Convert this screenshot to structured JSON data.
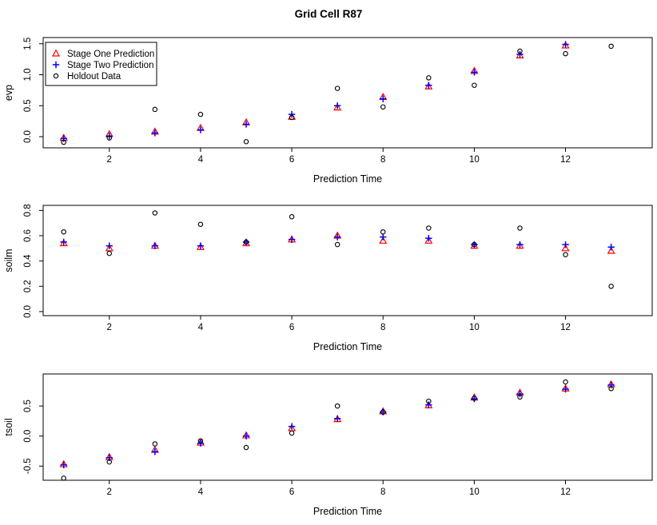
{
  "page": {
    "title": "Grid Cell R87",
    "background": "#ffffff"
  },
  "colors": {
    "stage_one": "#ff0000",
    "stage_two": "#0000ff",
    "holdout": "#000000",
    "axis": "#000000"
  },
  "legend": {
    "position": "top-left",
    "items": [
      {
        "label": "Stage One Prediction",
        "marker": "triangle-open-icon",
        "color": "#ff0000"
      },
      {
        "label": "Stage Two Prediction",
        "marker": "plus-icon",
        "color": "#0000ff"
      },
      {
        "label": "Holdout Data",
        "marker": "circle-open-icon",
        "color": "#000000"
      }
    ]
  },
  "chart_data": [
    {
      "type": "scatter",
      "title": "Grid Cell R87",
      "xlabel": "Prediction Time",
      "ylabel": "evp",
      "x": [
        1,
        2,
        3,
        4,
        5,
        6,
        7,
        8,
        9,
        10,
        11,
        12,
        13
      ],
      "xticks": [
        2,
        4,
        6,
        8,
        10,
        12
      ],
      "yticks": [
        0.0,
        0.5,
        1.0,
        1.5
      ],
      "xlim": [
        0.55,
        13.9
      ],
      "ylim": [
        -0.18,
        1.6
      ],
      "grid": false,
      "legend": true,
      "series": [
        {
          "name": "Stage One Prediction",
          "marker": "triangle-open",
          "color": "#ff0000",
          "values": [
            -0.02,
            0.04,
            0.08,
            0.14,
            0.23,
            0.32,
            0.47,
            0.64,
            0.81,
            1.06,
            1.31,
            1.47,
            null
          ]
        },
        {
          "name": "Stage Two Prediction",
          "marker": "plus",
          "color": "#0000ff",
          "values": [
            -0.03,
            0.01,
            0.06,
            0.11,
            0.2,
            0.36,
            0.5,
            0.61,
            0.83,
            1.04,
            1.33,
            1.49,
            null
          ]
        },
        {
          "name": "Holdout Data",
          "marker": "circle-open",
          "color": "#000000",
          "values": [
            -0.09,
            -0.02,
            0.44,
            0.36,
            -0.08,
            0.31,
            0.78,
            0.48,
            0.95,
            0.83,
            1.38,
            1.34,
            1.46
          ]
        }
      ]
    },
    {
      "type": "scatter",
      "title": "",
      "xlabel": "Prediction Time",
      "ylabel": "soilm",
      "x": [
        1,
        2,
        3,
        4,
        5,
        6,
        7,
        8,
        9,
        10,
        11,
        12,
        13
      ],
      "xticks": [
        2,
        4,
        6,
        8,
        10,
        12
      ],
      "yticks": [
        0.0,
        0.2,
        0.4,
        0.6,
        0.8
      ],
      "xlim": [
        0.55,
        13.9
      ],
      "ylim": [
        -0.032,
        0.84
      ],
      "grid": false,
      "legend": false,
      "series": [
        {
          "name": "Stage One Prediction",
          "marker": "triangle-open",
          "color": "#ff0000",
          "values": [
            0.54,
            0.5,
            0.52,
            0.51,
            0.54,
            0.57,
            0.6,
            0.56,
            0.56,
            0.52,
            0.52,
            0.5,
            0.48
          ]
        },
        {
          "name": "Stage Two Prediction",
          "marker": "plus",
          "color": "#0000ff",
          "values": [
            0.55,
            0.52,
            0.52,
            0.52,
            0.55,
            0.57,
            0.59,
            0.59,
            0.58,
            0.53,
            0.53,
            0.53,
            0.51
          ]
        },
        {
          "name": "Holdout Data",
          "marker": "circle-open",
          "color": "#000000",
          "values": [
            0.63,
            0.46,
            0.78,
            0.69,
            0.55,
            0.75,
            0.53,
            0.63,
            0.66,
            0.53,
            0.66,
            0.45,
            0.2
          ]
        }
      ]
    },
    {
      "type": "scatter",
      "title": "",
      "xlabel": "Prediction Time",
      "ylabel": "tsoil",
      "x": [
        1,
        2,
        3,
        4,
        5,
        6,
        7,
        8,
        9,
        10,
        11,
        12,
        13
      ],
      "xticks": [
        2,
        4,
        6,
        8,
        10,
        12
      ],
      "yticks": [
        -0.5,
        0.0,
        0.5
      ],
      "xlim": [
        0.55,
        13.9
      ],
      "ylim": [
        -0.735,
        1.033
      ],
      "grid": false,
      "legend": false,
      "series": [
        {
          "name": "Stage One Prediction",
          "marker": "triangle-open",
          "color": "#ff0000",
          "values": [
            -0.47,
            -0.35,
            -0.23,
            -0.11,
            0.01,
            0.13,
            0.28,
            0.41,
            0.51,
            0.64,
            0.72,
            0.79,
            0.86
          ]
        },
        {
          "name": "Stage Two Prediction",
          "marker": "plus",
          "color": "#0000ff",
          "values": [
            -0.48,
            -0.36,
            -0.26,
            -0.12,
            0.0,
            0.16,
            0.29,
            0.4,
            0.52,
            0.62,
            0.7,
            0.78,
            0.85
          ]
        },
        {
          "name": "Holdout Data",
          "marker": "circle-open",
          "color": "#000000",
          "values": [
            -0.7,
            -0.43,
            -0.13,
            -0.08,
            -0.19,
            0.05,
            0.5,
            0.4,
            0.58,
            0.63,
            0.65,
            0.9,
            0.79
          ]
        }
      ]
    }
  ]
}
